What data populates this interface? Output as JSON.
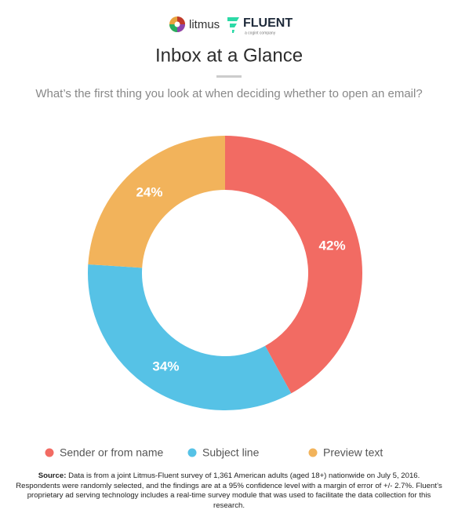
{
  "chart_data": {
    "type": "donut",
    "logo_texts": [
      "litmus",
      "FLUENT",
      "a cogint company"
    ],
    "title": "Inbox at a Glance",
    "subtitle": "What’s the first thing you look at when deciding whether to open an email?",
    "categories": [
      "Sender or from name",
      "Subject line",
      "Preview text"
    ],
    "values": [
      42,
      34,
      24
    ],
    "value_labels": [
      "42%",
      "34%",
      "24%"
    ],
    "colors": [
      "#f26b63",
      "#56c2e6",
      "#f2b35b"
    ],
    "source_label": "Source:",
    "source": "Data is from a joint Litmus-Fluent survey of 1,361 American adults (aged 18+) nationwide on July 5, 2016. Respondents were randomly selected, and the findings are at a 95% confidence level with a margin of error of +/- 2.7%. Fluent’s proprietary ad serving technology includes a real-time survey module that was used to facilitate the data collection for this research."
  }
}
